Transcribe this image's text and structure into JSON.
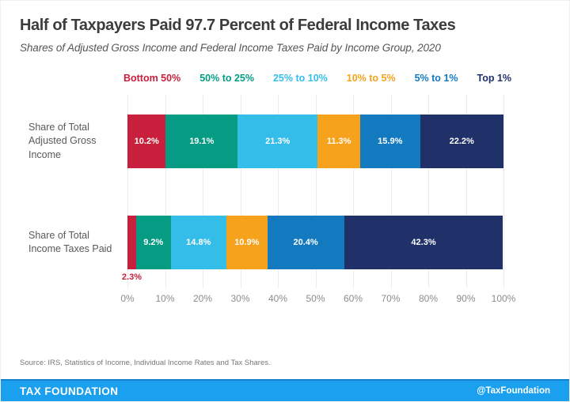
{
  "chart_data": {
    "type": "bar",
    "stacked": true,
    "orientation": "horizontal",
    "title": "Half of Taxpayers Paid 97.7 Percent of Federal Income Taxes",
    "subtitle": "Shares of Adjusted Gross Income and Federal Income Taxes Paid by Income Group, 2020",
    "categories": [
      "Share of Total Adjusted Gross Income",
      "Share of Total Income Taxes Paid"
    ],
    "series": [
      {
        "name": "Bottom 50%",
        "color": "#c8203c",
        "values": [
          10.2,
          2.3
        ]
      },
      {
        "name": "50% to 25%",
        "color": "#069c84",
        "values": [
          19.1,
          9.2
        ]
      },
      {
        "name": "25% to 10%",
        "color": "#35bde9",
        "values": [
          21.3,
          14.8
        ]
      },
      {
        "name": "10% to 5%",
        "color": "#f6a21c",
        "values": [
          11.3,
          10.9
        ]
      },
      {
        "name": "5% to 1%",
        "color": "#147ac0",
        "values": [
          15.9,
          20.4
        ]
      },
      {
        "name": "Top 1%",
        "color": "#20316a",
        "values": [
          22.2,
          42.3
        ]
      }
    ],
    "value_label_suffix": "%",
    "callout": {
      "category_index": 1,
      "series_index": 0,
      "text": "2.3%"
    },
    "xticks": [
      "0%",
      "10%",
      "20%",
      "30%",
      "40%",
      "50%",
      "60%",
      "70%",
      "80%",
      "90%",
      "100%"
    ],
    "xlim": [
      0,
      100
    ],
    "grid": true,
    "legend_position": "top",
    "source": "Source: IRS, Statistics of Income, Individual Income Rates and Tax Shares."
  },
  "footer": {
    "brand": "TAX FOUNDATION",
    "handle": "@TaxFoundation",
    "bar_color": "#1ba0f0"
  }
}
